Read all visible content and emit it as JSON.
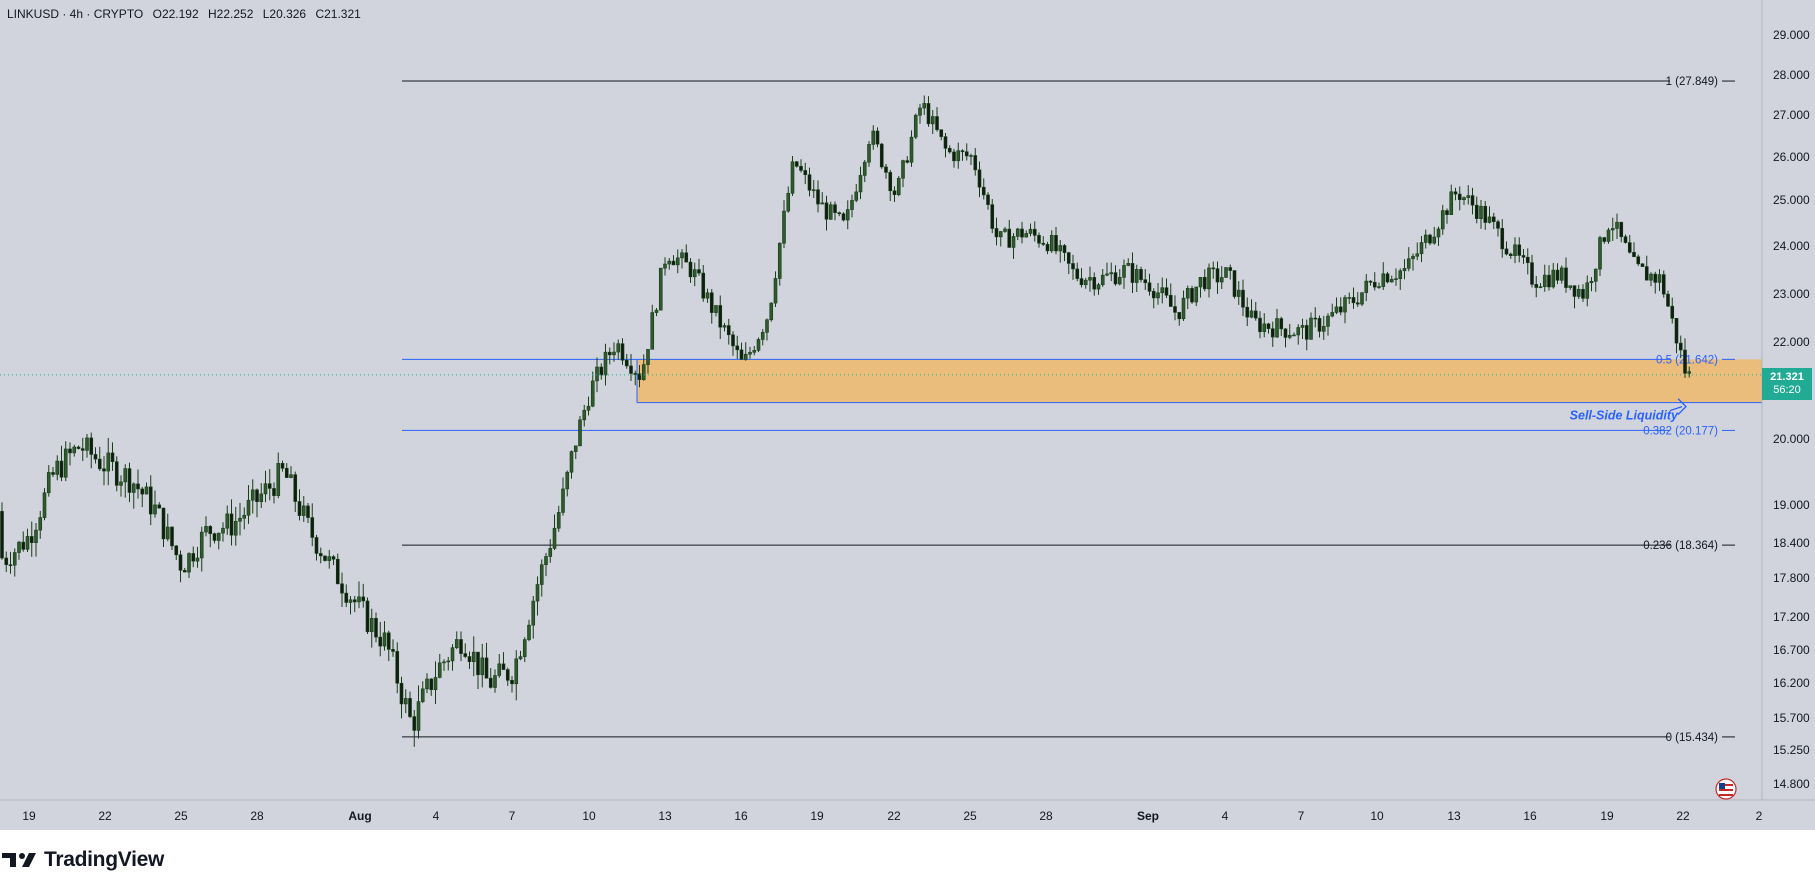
{
  "header": {
    "symbol": "LINKUSD · 4h · CRYPTO",
    "open": "O22.192",
    "high": "H22.252",
    "low": "L20.326",
    "close": "C21.321"
  },
  "brand": {
    "name": "TradingView"
  },
  "price_badge": {
    "price": "21.321",
    "countdown": "56:20",
    "color": "#22ab94"
  },
  "colors": {
    "background": "#d1d4dc",
    "candle": "#1a3d1a",
    "fib_line": "#131722",
    "fib_blue": "#2962ff",
    "zone_fill": "#f0b96b",
    "axis_text": "#131722"
  },
  "chart_data": {
    "type": "candlestick",
    "instrument": "LINKUSD",
    "timeframe": "4h",
    "y_axis": {
      "ticks": [
        "29.000",
        "28.000",
        "27.000",
        "26.000",
        "25.000",
        "24.000",
        "23.000",
        "22.000",
        "20.000",
        "19.000",
        "18.400",
        "17.800",
        "17.200",
        "16.700",
        "16.200",
        "15.700",
        "15.250",
        "14.800"
      ]
    },
    "x_axis": {
      "ticks": [
        "19",
        "22",
        "25",
        "28",
        "Aug",
        "4",
        "7",
        "10",
        "13",
        "16",
        "19",
        "22",
        "25",
        "28",
        "Sep",
        "4",
        "7",
        "10",
        "13",
        "16",
        "19",
        "22",
        "2"
      ]
    },
    "fib_levels": [
      {
        "label": "1 (27.849)",
        "value": 27.849,
        "style": "black"
      },
      {
        "label": "0.5 (21.642)",
        "value": 21.642,
        "style": "blue"
      },
      {
        "label": "0.382 (20.177)",
        "value": 20.177,
        "style": "blue"
      },
      {
        "label": "0.236 (18.364)",
        "value": 18.364,
        "style": "black"
      },
      {
        "label": "0 (15.434)",
        "value": 15.434,
        "style": "black"
      }
    ],
    "zone": {
      "top": 21.642,
      "bottom": 20.75,
      "annotation": "Sell-Side Liquidity"
    },
    "path_keypoints": [
      [
        "2024-07-17",
        18.9
      ],
      [
        "2024-07-18",
        18.1
      ],
      [
        "2024-07-19",
        18.5
      ],
      [
        "2024-07-20",
        19.5
      ],
      [
        "2024-07-21",
        19.9
      ],
      [
        "2024-07-22",
        19.6
      ],
      [
        "2024-07-23",
        19.4
      ],
      [
        "2024-07-24",
        18.9
      ],
      [
        "2024-07-25",
        18.0
      ],
      [
        "2024-07-26",
        18.6
      ],
      [
        "2024-07-27",
        18.7
      ],
      [
        "2024-07-28",
        19.1
      ],
      [
        "2024-07-29",
        19.5
      ],
      [
        "2024-07-30",
        18.6
      ],
      [
        "2024-07-31",
        17.9
      ],
      [
        "2024-08-01",
        17.3
      ],
      [
        "2024-08-02",
        16.8
      ],
      [
        "2024-08-03",
        15.6
      ],
      [
        "2024-08-04",
        16.4
      ],
      [
        "2024-08-05",
        16.9
      ],
      [
        "2024-08-06",
        16.2
      ],
      [
        "2024-08-07",
        16.4
      ],
      [
        "2024-08-08",
        17.8
      ],
      [
        "2024-08-09",
        19.2
      ],
      [
        "2024-08-10",
        21.0
      ],
      [
        "2024-08-11",
        22.0
      ],
      [
        "2024-08-12",
        21.3
      ],
      [
        "2024-08-13",
        23.9
      ],
      [
        "2024-08-14",
        23.5
      ],
      [
        "2024-08-15",
        22.5
      ],
      [
        "2024-08-16",
        21.5
      ],
      [
        "2024-08-17",
        22.6
      ],
      [
        "2024-08-18",
        25.9
      ],
      [
        "2024-08-19",
        24.9
      ],
      [
        "2024-08-20",
        24.4
      ],
      [
        "2024-08-21",
        26.6
      ],
      [
        "2024-08-22",
        25.1
      ],
      [
        "2024-08-23",
        27.3
      ],
      [
        "2024-08-24",
        26.1
      ],
      [
        "2024-08-25",
        26.0
      ],
      [
        "2024-08-26",
        24.1
      ],
      [
        "2024-08-27",
        24.3
      ],
      [
        "2024-08-28",
        24.1
      ],
      [
        "2024-08-29",
        23.4
      ],
      [
        "2024-08-30",
        23.3
      ],
      [
        "2024-08-31",
        23.5
      ],
      [
        "2024-09-01",
        23.2
      ],
      [
        "2024-09-02",
        22.6
      ],
      [
        "2024-09-03",
        23.3
      ],
      [
        "2024-09-04",
        23.4
      ],
      [
        "2024-09-05",
        22.4
      ],
      [
        "2024-09-06",
        22.3
      ],
      [
        "2024-09-07",
        22.2
      ],
      [
        "2024-09-08",
        22.5
      ],
      [
        "2024-09-09",
        22.9
      ],
      [
        "2024-09-10",
        23.4
      ],
      [
        "2024-09-11",
        23.5
      ],
      [
        "2024-09-12",
        24.3
      ],
      [
        "2024-09-13",
        25.2
      ],
      [
        "2024-09-14",
        24.7
      ],
      [
        "2024-09-15",
        24.0
      ],
      [
        "2024-09-16",
        23.3
      ],
      [
        "2024-09-17",
        23.4
      ],
      [
        "2024-09-18",
        23.0
      ],
      [
        "2024-09-19",
        24.6
      ],
      [
        "2024-09-20",
        23.5
      ],
      [
        "2024-09-21",
        23.3
      ],
      [
        "2024-09-22",
        21.3
      ]
    ]
  }
}
